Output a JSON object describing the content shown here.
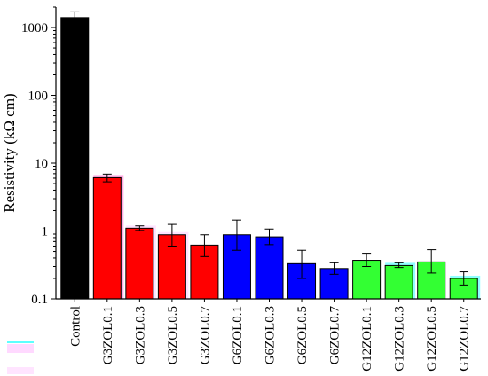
{
  "chart_data": {
    "type": "bar",
    "title": "",
    "xlabel": "",
    "ylabel": "Resistivity (kΩ cm)",
    "yscale": "log",
    "ylim": [
      0.1,
      2000
    ],
    "y_ticks": [
      0.1,
      1,
      10,
      100,
      1000
    ],
    "y_tick_labels": [
      "0.1",
      "1",
      "10",
      "100",
      "1000"
    ],
    "grid": false,
    "legend": "none",
    "categories": [
      "Control",
      "G3ZOL0.1",
      "G3ZOL0.3",
      "G3ZOL0.5",
      "G3ZOL0.7",
      "G6ZOL0.1",
      "G6ZOL0.3",
      "G6ZOL0.5",
      "G6ZOL0.7",
      "G12ZOL0.1",
      "G12ZOL0.3",
      "G12ZOL0.5",
      "G12ZOL0.7"
    ],
    "values": [
      1400,
      6.1,
      1.1,
      0.88,
      0.62,
      0.88,
      0.82,
      0.33,
      0.28,
      0.37,
      0.31,
      0.35,
      0.2
    ],
    "error_low": [
      1180,
      5.3,
      1.02,
      0.6,
      0.42,
      0.52,
      0.63,
      0.2,
      0.23,
      0.3,
      0.29,
      0.24,
      0.16
    ],
    "error_high": [
      1700,
      6.9,
      1.19,
      1.25,
      0.88,
      1.45,
      1.07,
      0.52,
      0.34,
      0.47,
      0.34,
      0.53,
      0.25
    ],
    "bar_colors": [
      "#000000",
      "#ff0000",
      "#ff0000",
      "#ff0000",
      "#ff0000",
      "#0000ff",
      "#0000ff",
      "#0000ff",
      "#0000ff",
      "#33ff33",
      "#33ff33",
      "#33ff33",
      "#33ff33"
    ],
    "shadow_colors": [
      "",
      "#ff66cc",
      "#ffccff",
      "#ffccff",
      "",
      "",
      "",
      "",
      "",
      "",
      "#33ffff",
      "",
      "#33ffff"
    ],
    "axis_color": "#000000",
    "legend_swatch_colors": [
      "#33ffff",
      "#ffb3ff"
    ]
  }
}
